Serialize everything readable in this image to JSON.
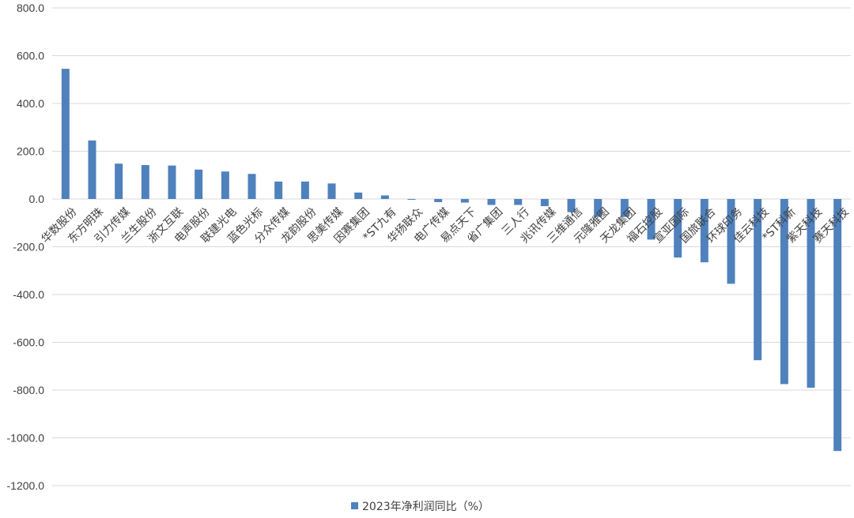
{
  "chart_data": {
    "type": "bar",
    "title": "",
    "xlabel": "",
    "ylabel": "",
    "ylim": [
      -1200,
      800
    ],
    "ytick_step": 200,
    "grid": true,
    "legend_position": "bottom",
    "bar_color": "#4f81bd",
    "grid_color": "#d9d9d9",
    "categories": [
      "华数股份",
      "东方明珠",
      "引力传媒",
      "兰生股份",
      "浙文互联",
      "电声股份",
      "联建光电",
      "蓝色光标",
      "分众传媒",
      "龙韵股份",
      "思美传媒",
      "因赛集团",
      "*ST九有",
      "华扬联众",
      "电广传媒",
      "易点天下",
      "省广集团",
      "三人行",
      "兆讯传媒",
      "三维通信",
      "元隆雅图",
      "天龙集团",
      "福石控股",
      "宣亚国际",
      "国旅联合",
      "环球印务",
      "佳云科技",
      "*ST科新",
      "紫天科技",
      "赛天科技"
    ],
    "series": [
      {
        "name": "2023年净利润同比（%）",
        "values": [
          545,
          245,
          148,
          142,
          140,
          123,
          115,
          105,
          73,
          73,
          65,
          27,
          15,
          -3,
          -13,
          -15,
          -25,
          -25,
          -30,
          -55,
          -75,
          -75,
          -170,
          -245,
          -265,
          -355,
          -675,
          -775,
          -790,
          -1055
        ]
      }
    ]
  }
}
